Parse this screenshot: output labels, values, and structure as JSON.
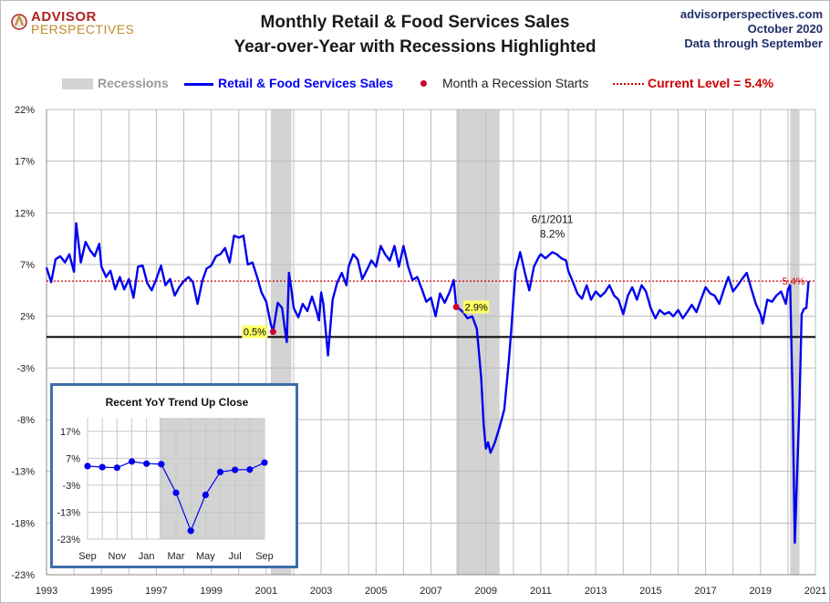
{
  "header": {
    "logo_line1": "ADVISOR",
    "logo_line2": "PERSPECTIVES",
    "title_line1": "Monthly Retail & Food Services Sales",
    "title_line2": "Year-over-Year with Recessions Highlighted",
    "source_line1": "advisorperspectives.com",
    "source_line2": "October 2020",
    "source_line3": "Data through  September"
  },
  "legend": {
    "recessions": "Recessions",
    "series": "Retail & Food Services Sales",
    "recession_start": "Month a Recession Starts",
    "current_level": "Current Level = 5.4%"
  },
  "colors": {
    "series": "#0000ee",
    "recession": "#d3d3d3",
    "current_level": "#cc0000",
    "recession_start_marker": "#cc0033",
    "annotation_bg": "#ffff66",
    "inset_border": "#3d6ea8"
  },
  "chart_data": [
    {
      "type": "line",
      "title": "Monthly Retail & Food Services Sales Year-over-Year with Recessions Highlighted",
      "y_unit": "%",
      "ylim": [
        -23,
        22
      ],
      "yticks": [
        22,
        17,
        12,
        7,
        2,
        -3,
        -8,
        -13,
        -18,
        -23
      ],
      "ytick_labels": [
        "22%",
        "17%",
        "12%",
        "7%",
        "2%",
        "-3%",
        "-8%",
        "-13%",
        "-18%",
        "-23%"
      ],
      "xlim": [
        1993.0,
        2021.0
      ],
      "xticks": [
        1993,
        1995,
        1997,
        1999,
        2001,
        2003,
        2005,
        2007,
        2009,
        2011,
        2013,
        2015,
        2017,
        2019,
        2021
      ],
      "grid": true,
      "recessions": [
        {
          "start": 2001.17,
          "end": 2001.92
        },
        {
          "start": 2007.92,
          "end": 2009.5
        },
        {
          "start": 2020.08,
          "end": 2020.42
        }
      ],
      "current_level": 5.4,
      "current_level_label": "5.4%",
      "zero_line": 0,
      "series": [
        {
          "name": "Retail & Food Services Sales",
          "points": [
            [
              1993.0,
              6.7
            ],
            [
              1993.17,
              5.3
            ],
            [
              1993.33,
              7.5
            ],
            [
              1993.5,
              7.8
            ],
            [
              1993.67,
              7.2
            ],
            [
              1993.83,
              8.0
            ],
            [
              1994.0,
              6.3
            ],
            [
              1994.08,
              11.0
            ],
            [
              1994.25,
              7.2
            ],
            [
              1994.42,
              9.2
            ],
            [
              1994.58,
              8.4
            ],
            [
              1994.75,
              7.8
            ],
            [
              1994.92,
              9.0
            ],
            [
              1995.0,
              6.8
            ],
            [
              1995.17,
              5.8
            ],
            [
              1995.33,
              6.4
            ],
            [
              1995.5,
              4.6
            ],
            [
              1995.67,
              5.8
            ],
            [
              1995.83,
              4.6
            ],
            [
              1996.0,
              5.6
            ],
            [
              1996.17,
              3.8
            ],
            [
              1996.33,
              6.8
            ],
            [
              1996.5,
              6.9
            ],
            [
              1996.67,
              5.2
            ],
            [
              1996.83,
              4.5
            ],
            [
              1997.0,
              5.6
            ],
            [
              1997.17,
              6.9
            ],
            [
              1997.33,
              5.0
            ],
            [
              1997.5,
              5.6
            ],
            [
              1997.67,
              4.0
            ],
            [
              1997.83,
              4.8
            ],
            [
              1998.0,
              5.4
            ],
            [
              1998.17,
              5.8
            ],
            [
              1998.33,
              5.3
            ],
            [
              1998.5,
              3.2
            ],
            [
              1998.67,
              5.4
            ],
            [
              1998.83,
              6.6
            ],
            [
              1999.0,
              6.9
            ],
            [
              1999.17,
              7.8
            ],
            [
              1999.33,
              8.0
            ],
            [
              1999.5,
              8.6
            ],
            [
              1999.67,
              7.2
            ],
            [
              1999.83,
              9.8
            ],
            [
              2000.0,
              9.6
            ],
            [
              2000.17,
              9.8
            ],
            [
              2000.33,
              7.0
            ],
            [
              2000.5,
              7.2
            ],
            [
              2000.67,
              5.8
            ],
            [
              2000.83,
              4.3
            ],
            [
              2001.0,
              3.4
            ],
            [
              2001.17,
              1.2
            ],
            [
              2001.25,
              0.5
            ],
            [
              2001.42,
              3.3
            ],
            [
              2001.58,
              2.8
            ],
            [
              2001.67,
              1.0
            ],
            [
              2001.75,
              -0.5
            ],
            [
              2001.83,
              6.2
            ],
            [
              2001.92,
              4.5
            ],
            [
              2002.0,
              2.8
            ],
            [
              2002.17,
              1.9
            ],
            [
              2002.33,
              3.2
            ],
            [
              2002.5,
              2.5
            ],
            [
              2002.67,
              3.9
            ],
            [
              2002.83,
              2.5
            ],
            [
              2002.92,
              1.6
            ],
            [
              2003.0,
              4.3
            ],
            [
              2003.08,
              3.2
            ],
            [
              2003.25,
              -1.8
            ],
            [
              2003.42,
              3.6
            ],
            [
              2003.58,
              5.2
            ],
            [
              2003.75,
              6.2
            ],
            [
              2003.92,
              5.0
            ],
            [
              2004.0,
              6.8
            ],
            [
              2004.17,
              8.0
            ],
            [
              2004.33,
              7.5
            ],
            [
              2004.5,
              5.6
            ],
            [
              2004.67,
              6.5
            ],
            [
              2004.83,
              7.4
            ],
            [
              2005.0,
              6.8
            ],
            [
              2005.17,
              8.8
            ],
            [
              2005.33,
              8.0
            ],
            [
              2005.5,
              7.4
            ],
            [
              2005.67,
              8.8
            ],
            [
              2005.83,
              6.8
            ],
            [
              2006.0,
              8.8
            ],
            [
              2006.17,
              6.8
            ],
            [
              2006.33,
              5.5
            ],
            [
              2006.5,
              5.8
            ],
            [
              2006.67,
              4.6
            ],
            [
              2006.83,
              3.4
            ],
            [
              2007.0,
              3.8
            ],
            [
              2007.17,
              2.0
            ],
            [
              2007.33,
              4.2
            ],
            [
              2007.5,
              3.3
            ],
            [
              2007.67,
              4.3
            ],
            [
              2007.83,
              5.5
            ],
            [
              2007.92,
              2.9
            ],
            [
              2008.0,
              2.8
            ],
            [
              2008.17,
              2.4
            ],
            [
              2008.33,
              1.8
            ],
            [
              2008.5,
              2.0
            ],
            [
              2008.67,
              0.8
            ],
            [
              2008.83,
              -4.0
            ],
            [
              2008.92,
              -8.5
            ],
            [
              2009.0,
              -10.8
            ],
            [
              2009.08,
              -10.2
            ],
            [
              2009.17,
              -11.2
            ],
            [
              2009.33,
              -10.2
            ],
            [
              2009.5,
              -8.7
            ],
            [
              2009.67,
              -7.0
            ],
            [
              2009.83,
              -2.5
            ],
            [
              2009.92,
              0.5
            ],
            [
              2010.0,
              3.5
            ],
            [
              2010.08,
              6.4
            ],
            [
              2010.25,
              8.2
            ],
            [
              2010.42,
              6.2
            ],
            [
              2010.58,
              4.5
            ],
            [
              2010.75,
              6.8
            ],
            [
              2010.92,
              7.7
            ],
            [
              2011.0,
              8.0
            ],
            [
              2011.17,
              7.6
            ],
            [
              2011.42,
              8.2
            ],
            [
              2011.58,
              8.0
            ],
            [
              2011.75,
              7.6
            ],
            [
              2011.92,
              7.4
            ],
            [
              2012.0,
              6.4
            ],
            [
              2012.17,
              5.3
            ],
            [
              2012.33,
              4.2
            ],
            [
              2012.5,
              3.7
            ],
            [
              2012.67,
              5.0
            ],
            [
              2012.83,
              3.6
            ],
            [
              2013.0,
              4.4
            ],
            [
              2013.17,
              3.9
            ],
            [
              2013.33,
              4.3
            ],
            [
              2013.5,
              5.0
            ],
            [
              2013.67,
              4.0
            ],
            [
              2013.83,
              3.6
            ],
            [
              2014.0,
              2.2
            ],
            [
              2014.17,
              4.0
            ],
            [
              2014.33,
              4.8
            ],
            [
              2014.5,
              3.6
            ],
            [
              2014.67,
              5.0
            ],
            [
              2014.83,
              4.4
            ],
            [
              2015.0,
              2.8
            ],
            [
              2015.17,
              1.8
            ],
            [
              2015.33,
              2.6
            ],
            [
              2015.5,
              2.2
            ],
            [
              2015.67,
              2.4
            ],
            [
              2015.83,
              2.0
            ],
            [
              2016.0,
              2.6
            ],
            [
              2016.17,
              1.8
            ],
            [
              2016.33,
              2.4
            ],
            [
              2016.5,
              3.1
            ],
            [
              2016.67,
              2.4
            ],
            [
              2016.83,
              3.6
            ],
            [
              2017.0,
              4.8
            ],
            [
              2017.17,
              4.2
            ],
            [
              2017.33,
              4.0
            ],
            [
              2017.5,
              3.2
            ],
            [
              2017.67,
              4.6
            ],
            [
              2017.83,
              5.8
            ],
            [
              2018.0,
              4.4
            ],
            [
              2018.17,
              5.0
            ],
            [
              2018.33,
              5.6
            ],
            [
              2018.5,
              6.2
            ],
            [
              2018.67,
              4.6
            ],
            [
              2018.83,
              3.2
            ],
            [
              2019.0,
              2.2
            ],
            [
              2019.08,
              1.3
            ],
            [
              2019.25,
              3.6
            ],
            [
              2019.42,
              3.4
            ],
            [
              2019.58,
              4.0
            ],
            [
              2019.75,
              4.4
            ],
            [
              2019.92,
              3.2
            ],
            [
              2020.0,
              4.6
            ],
            [
              2020.08,
              5.0
            ],
            [
              2020.17,
              -5.8
            ],
            [
              2020.25,
              -19.9
            ],
            [
              2020.42,
              -6.6
            ],
            [
              2020.5,
              2.2
            ],
            [
              2020.58,
              2.7
            ],
            [
              2020.67,
              2.8
            ],
            [
              2020.75,
              5.4
            ]
          ]
        }
      ],
      "recession_start_markers": [
        {
          "x": 2001.25,
          "y": 0.5,
          "label": "0.5%"
        },
        {
          "x": 2007.92,
          "y": 2.9,
          "label": "2.9%"
        }
      ],
      "annotations": [
        {
          "x": 2011.42,
          "y": 8.2,
          "text_line1": "6/1/2011",
          "text_line2": "8.2%"
        }
      ]
    },
    {
      "type": "line",
      "title": "Recent  YoY Trend Up Close",
      "y_unit": "%",
      "ylim": [
        -23,
        22
      ],
      "yticks": [
        17,
        7,
        -3,
        -13,
        -23
      ],
      "ytick_labels": [
        "17%",
        "7%",
        "-3%",
        "-13%",
        "-23%"
      ],
      "x_labels": [
        "Sep",
        "Nov",
        "Jan",
        "Mar",
        "May",
        "Jul",
        "Sep"
      ],
      "recession_start_index": 5,
      "recession_end_index": 12,
      "series": [
        {
          "name": "Retail & Food Services Sales",
          "values": [
            4.1,
            3.7,
            3.5,
            5.8,
            5.0,
            4.8,
            -5.8,
            -19.9,
            -6.6,
            1.9,
            2.7,
            2.8,
            5.4
          ],
          "months": [
            "Sep",
            "Oct",
            "Nov",
            "Dec",
            "Jan",
            "Feb",
            "Mar",
            "Apr",
            "May",
            "Jun",
            "Jul",
            "Aug",
            "Sep"
          ]
        }
      ]
    }
  ]
}
